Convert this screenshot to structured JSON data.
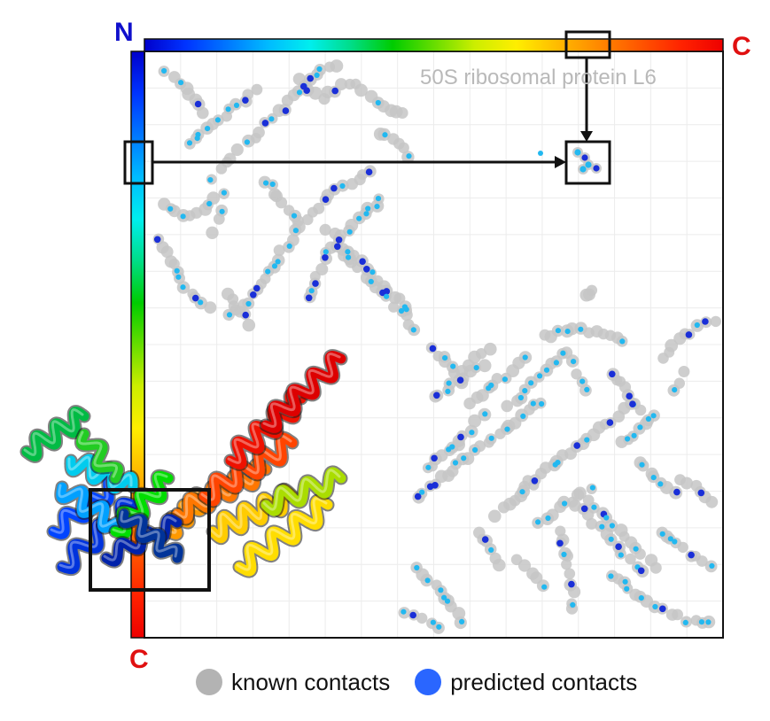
{
  "terminals": {
    "n_label": "N",
    "c_label": "C"
  },
  "title": "50S ribosomal protein L6",
  "legend": {
    "known": {
      "label": "known contacts",
      "color": "#b3b3b3"
    },
    "predicted": {
      "label": "predicted contacts",
      "color": "#2a66ff"
    }
  },
  "colors": {
    "rainbow": [
      "#0000cc",
      "#0033ff",
      "#0077ff",
      "#00bbff",
      "#00eeee",
      "#00dd88",
      "#00cc00",
      "#66dd00",
      "#ccee00",
      "#ffee00",
      "#ffbb00",
      "#ff8800",
      "#ff5500",
      "#ff2200",
      "#ee0000"
    ],
    "known": "#c6c6c6",
    "predicted_dark": "#1a2fd8",
    "predicted_light": "#22b8f0",
    "frame": "#111111"
  }
}
